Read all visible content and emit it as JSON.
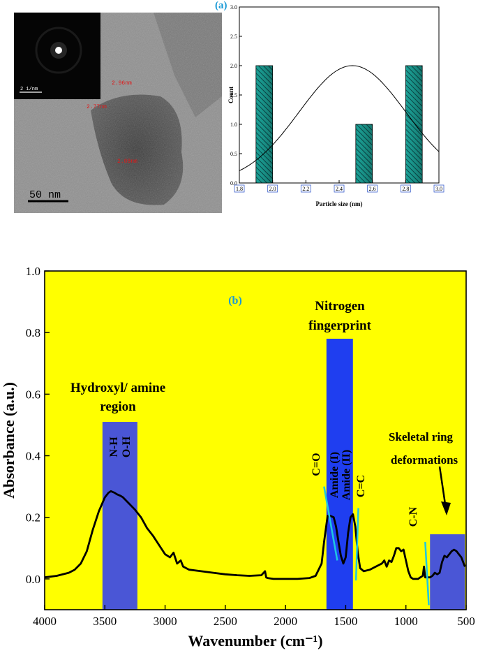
{
  "panel_a": {
    "label": "(a)",
    "tem": {
      "scale_bar": "50 nm",
      "saed_scale": "2 1/nm",
      "lattice_labels": [
        "2.96nm",
        "2.77nm",
        "2.08nm"
      ]
    }
  },
  "panel_b": {
    "label": "(b)",
    "regions": [
      {
        "label": "Hydroxyl/ amine region",
        "x_range": [
          3520,
          3230
        ],
        "y_max": 0.51,
        "color": "#4a56d6"
      },
      {
        "label": "Nitrogen fingerprint",
        "x_range": [
          1660,
          1440
        ],
        "y_max": 0.78,
        "color": "#1f3ef0"
      },
      {
        "label": "Skeletal ring deformations",
        "x_range": [
          800,
          510
        ],
        "y_max": 0.145,
        "color": "#4a56d6"
      }
    ],
    "bond_labels": [
      "N-H",
      "O-H",
      "C=O",
      "Amide (I)",
      "Amide (II)",
      "C=C",
      "C-N"
    ]
  },
  "chart_data": [
    {
      "type": "bar",
      "xlabel": "Particle size (nm)",
      "ylabel": "Count",
      "bars": [
        {
          "x": 1.95,
          "value": 2
        },
        {
          "x": 2.55,
          "value": 1
        },
        {
          "x": 2.85,
          "value": 2
        }
      ],
      "bar_width": 0.1,
      "xlim": [
        1.8,
        3.0
      ],
      "ylim": [
        0,
        3.0
      ],
      "xticks": [
        "1.8",
        "2.0",
        "2.2",
        "2.4",
        "2.6",
        "2.8",
        "3.0"
      ],
      "yticks": [
        "0.0",
        "0.5",
        "1.0",
        "1.5",
        "2.0",
        "2.5",
        "3.0"
      ],
      "fit_curve": {
        "type": "gaussian",
        "peak_x": 2.48,
        "peak_y": 2.0,
        "sigma": 0.32
      },
      "bar_color": "#1fb5a8"
    },
    {
      "type": "line",
      "xlabel": "Wavenumber (cm⁻¹)",
      "ylabel": "Absorbance (a.u.)",
      "xlim": [
        4000,
        500
      ],
      "ylim": [
        -0.1,
        1.0
      ],
      "xticks": [
        "4000",
        "3500",
        "3000",
        "2500",
        "2000",
        "1500",
        "1000",
        "500"
      ],
      "yticks": [
        "0.0",
        "0.2",
        "0.4",
        "0.6",
        "0.8",
        "1.0"
      ],
      "background": "#ffff00",
      "series": [
        {
          "x": [
            4000,
            3900,
            3800,
            3750,
            3700,
            3650,
            3600,
            3550,
            3500,
            3470,
            3450,
            3420,
            3400,
            3370,
            3350,
            3300,
            3250,
            3200,
            3150,
            3100,
            3050,
            3000,
            2960,
            2930,
            2900,
            2870,
            2850,
            2800,
            2700,
            2600,
            2500,
            2400,
            2300,
            2200,
            2170,
            2160,
            2150,
            2100,
            2000,
            1900,
            1800,
            1750,
            1700,
            1680,
            1650,
            1630,
            1600,
            1580,
            1560,
            1540,
            1520,
            1500,
            1480,
            1460,
            1440,
            1420,
            1400,
            1380,
            1350,
            1300,
            1250,
            1200,
            1180,
            1160,
            1140,
            1120,
            1100,
            1080,
            1060,
            1040,
            1020,
            1000,
            980,
            960,
            940,
            920,
            900,
            880,
            860,
            850,
            840,
            820,
            800,
            780,
            760,
            740,
            720,
            700,
            680,
            660,
            640,
            620,
            600,
            580,
            560,
            540,
            520,
            510
          ],
          "y": [
            0.005,
            0.01,
            0.02,
            0.03,
            0.05,
            0.09,
            0.16,
            0.22,
            0.265,
            0.28,
            0.285,
            0.28,
            0.275,
            0.27,
            0.265,
            0.245,
            0.225,
            0.2,
            0.165,
            0.14,
            0.11,
            0.08,
            0.07,
            0.085,
            0.05,
            0.06,
            0.04,
            0.03,
            0.025,
            0.02,
            0.015,
            0.012,
            0.01,
            0.012,
            0.025,
            0.005,
            0.003,
            0.0,
            0.0,
            0.0,
            0.003,
            0.01,
            0.05,
            0.12,
            0.205,
            0.205,
            0.2,
            0.17,
            0.12,
            0.075,
            0.05,
            0.07,
            0.15,
            0.2,
            0.21,
            0.17,
            0.085,
            0.035,
            0.025,
            0.03,
            0.04,
            0.05,
            0.06,
            0.04,
            0.06,
            0.055,
            0.075,
            0.1,
            0.1,
            0.09,
            0.095,
            0.06,
            0.025,
            0.005,
            0.0,
            0.0,
            0.0,
            0.005,
            0.01,
            0.04,
            0.005,
            0.005,
            0.005,
            0.01,
            0.02,
            0.015,
            0.02,
            0.055,
            0.075,
            0.07,
            0.08,
            0.09,
            0.095,
            0.09,
            0.08,
            0.07,
            0.05,
            0.04
          ]
        }
      ]
    }
  ]
}
